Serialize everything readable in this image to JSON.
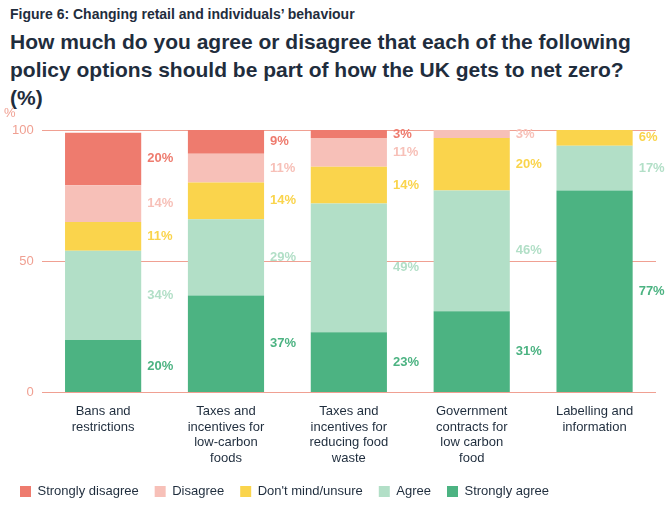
{
  "chart_data": {
    "type": "bar",
    "subtitle": "Figure 6: Changing retail and individuals’ behaviour",
    "title": "How much do you agree or disagree that each of the following policy options should be part of how the UK gets to net zero? (%)",
    "y_label": "%",
    "categories": [
      "Bans and restrictions",
      "Taxes and incentives for low-carbon foods",
      "Taxes and incentives for reducing food waste",
      "Government contracts for low carbon food",
      "Labelling and information"
    ],
    "series": [
      {
        "name": "Strongly agree",
        "color": "#4cb382",
        "values": [
          20,
          37,
          23,
          31,
          77
        ],
        "value_labels": [
          "20%",
          "37%",
          "23%",
          "31%",
          "77%"
        ]
      },
      {
        "name": "Agree",
        "color": "#b2dfc7",
        "values": [
          34,
          29,
          49,
          46,
          17
        ],
        "value_labels": [
          "34%",
          "29%",
          "49%",
          "46%",
          "17%"
        ]
      },
      {
        "name": "Don't mind/unsure",
        "color": "#fad44c",
        "values": [
          11,
          14,
          14,
          20,
          6
        ],
        "value_labels": [
          "11%",
          "14%",
          "14%",
          "20%",
          "6%"
        ]
      },
      {
        "name": "Disagree",
        "color": "#f7c0b8",
        "values": [
          14,
          11,
          11,
          3,
          null
        ],
        "value_labels": [
          "14%",
          "11%",
          "11%",
          "3%",
          null
        ]
      },
      {
        "name": "Strongly disagree",
        "color": "#ee7b6e",
        "values": [
          20,
          9,
          3,
          null,
          null
        ],
        "value_labels": [
          "20%",
          "9%",
          "3%",
          null,
          null
        ]
      }
    ],
    "ylim": [
      0,
      100
    ],
    "yticks": [
      0,
      50,
      100
    ],
    "stacked": true,
    "data_labels": true,
    "grid": true,
    "legend": "bottom left"
  }
}
